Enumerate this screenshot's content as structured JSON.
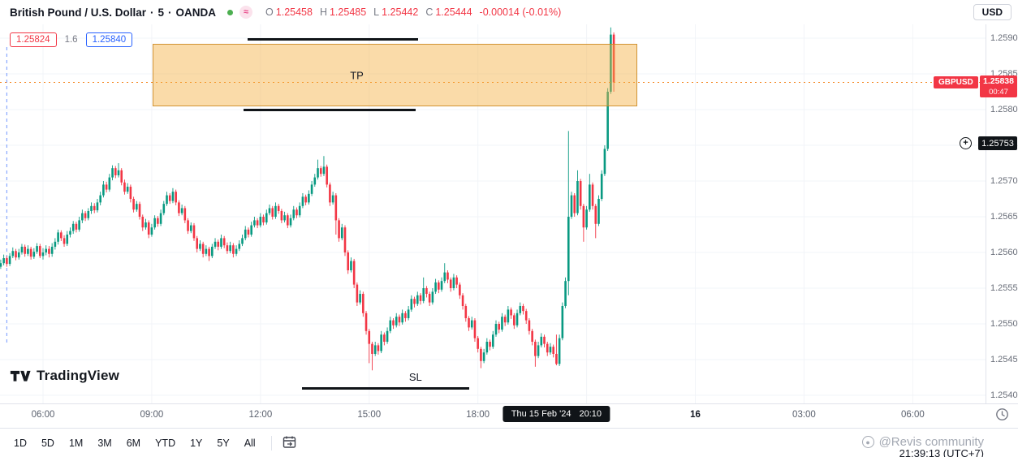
{
  "header": {
    "symbol_title": "British Pound / U.S. Dollar",
    "separator": "·",
    "interval": "5",
    "exchange": "OANDA",
    "ohlc": {
      "o_label": "O",
      "o_value": "1.25458",
      "h_label": "H",
      "h_value": "1.25485",
      "l_label": "L",
      "l_value": "1.25442",
      "c_label": "C",
      "c_value": "1.25444",
      "change": "-0.00014 (-0.01%)"
    },
    "currency_button": "USD"
  },
  "position_labels": {
    "entry": "1.25824",
    "size": "1.6",
    "target": "1.25840"
  },
  "icons": {
    "wave": "≈",
    "plus": "+"
  },
  "colors": {
    "up": "#089981",
    "down": "#f23645",
    "accent_blue": "#2962ff",
    "market_open_dot": "#4caf50",
    "tp_fill": "rgba(245,176,65,0.45)",
    "tp_border": "rgba(201,134,30,0.85)",
    "last_price_line": "#f5861d",
    "grid": "#f2f4f8"
  },
  "drawings": {
    "tp_zone": {
      "label": "TP",
      "h_start": 3.024,
      "h_end": 16.4,
      "price_top": 1.25892,
      "price_bottom": 1.258045,
      "label_h": 8.45
    },
    "line_above": {
      "h_start": 5.645,
      "h_end": 10.349,
      "price": 1.25898
    },
    "line_below": {
      "h_start": 5.533,
      "h_end": 10.282,
      "price": 1.257989
    },
    "sl_line": {
      "label": "SL",
      "h_start": 7.146,
      "h_end": 11.761,
      "price": 1.2541,
      "label_h": 10.28
    },
    "vline_h": -1.0,
    "last_price_line": {
      "price": 1.25838
    }
  },
  "price_scale": {
    "labels": [
      "1.25900",
      "1.25850",
      "1.25800",
      "1.25750",
      "1.25700",
      "1.25650",
      "1.25600",
      "1.25550",
      "1.25500",
      "1.25450",
      "1.25400"
    ],
    "symbol_badge": {
      "label": "GBPUSD",
      "price": "1.25838",
      "countdown": "00:47"
    },
    "order_badge": {
      "price": "1.25753"
    }
  },
  "time_scale": {
    "labels": [
      {
        "text": "06:00",
        "h": 0
      },
      {
        "text": "09:00",
        "h": 3
      },
      {
        "text": "12:00",
        "h": 6
      },
      {
        "text": "15:00",
        "h": 9
      },
      {
        "text": "18:00",
        "h": 12
      },
      {
        "text": "16",
        "h": 18,
        "emphasis": true
      },
      {
        "text": "03:00",
        "h": 21
      },
      {
        "text": "06:00",
        "h": 24
      }
    ],
    "crosshair_badge": {
      "date": "Thu 15 Feb '24",
      "time": "20:10",
      "h": 14.1667
    }
  },
  "toolbar": {
    "ranges": [
      "1D",
      "5D",
      "1M",
      "3M",
      "6M",
      "YTD",
      "1Y",
      "5Y",
      "All"
    ],
    "clock": "21:39:13 (UTC+7)"
  },
  "watermark": "@Revis community",
  "logo_text": "TradingView",
  "chart_data": {
    "type": "candlestick",
    "symbol": "GBPUSD",
    "description": "British Pound / U.S. Dollar, 5-minute, OANDA",
    "interval_minutes": 5,
    "price_base": 1.25,
    "pip": 0.0001,
    "first_candle_offset_h": -1.1667,
    "visible_price_range": [
      1.254,
      1.259
    ],
    "last_price": 1.25838,
    "hovered_candle": {
      "time": "20:10",
      "open": 1.25458,
      "high": 1.25485,
      "low": 1.25442,
      "close": 1.25444
    },
    "up_color": "#089981",
    "down_color": "#f23645",
    "candles_pips": [
      [
        58.0,
        59.0,
        57.7,
        58.5
      ],
      [
        58.5,
        59.7,
        58.2,
        59.2
      ],
      [
        59.2,
        59.5,
        58.0,
        58.4
      ],
      [
        58.4,
        59.9,
        58.1,
        59.5
      ],
      [
        59.5,
        60.7,
        59.2,
        60.2
      ],
      [
        60.2,
        60.5,
        58.9,
        59.3
      ],
      [
        59.3,
        60.5,
        59.0,
        60.0
      ],
      [
        60.0,
        61.2,
        59.7,
        60.8
      ],
      [
        60.8,
        61.1,
        59.4,
        59.8
      ],
      [
        59.8,
        61.0,
        59.5,
        60.5
      ],
      [
        60.5,
        60.8,
        59.0,
        59.4
      ],
      [
        59.4,
        60.6,
        59.1,
        60.1
      ],
      [
        60.1,
        61.3,
        59.8,
        60.9
      ],
      [
        60.9,
        61.2,
        59.2,
        59.5
      ],
      [
        59.5,
        60.6,
        59.0,
        60.0
      ],
      [
        60.0,
        61.0,
        59.6,
        60.5
      ],
      [
        60.5,
        60.9,
        59.3,
        59.8
      ],
      [
        59.8,
        61.3,
        59.4,
        60.8
      ],
      [
        60.8,
        62.0,
        60.4,
        61.5
      ],
      [
        61.5,
        63.2,
        61.1,
        62.8
      ],
      [
        62.8,
        63.1,
        61.6,
        62.0
      ],
      [
        62.0,
        62.4,
        60.8,
        61.2
      ],
      [
        61.2,
        63.0,
        60.9,
        62.5
      ],
      [
        62.5,
        63.5,
        62.1,
        63.0
      ],
      [
        63.0,
        64.4,
        62.6,
        64.0
      ],
      [
        64.0,
        64.3,
        62.8,
        63.2
      ],
      [
        63.2,
        65.0,
        62.9,
        64.5
      ],
      [
        64.5,
        66.0,
        64.1,
        65.5
      ],
      [
        65.5,
        65.8,
        64.4,
        64.8
      ],
      [
        64.8,
        66.2,
        64.5,
        65.8
      ],
      [
        65.8,
        67.0,
        65.4,
        66.5
      ],
      [
        66.5,
        66.9,
        65.5,
        65.9
      ],
      [
        65.9,
        67.5,
        65.6,
        67.0
      ],
      [
        67.0,
        68.5,
        66.6,
        68.0
      ],
      [
        68.0,
        70.0,
        67.7,
        69.5
      ],
      [
        69.5,
        69.9,
        68.4,
        68.8
      ],
      [
        68.8,
        71.0,
        68.5,
        70.5
      ],
      [
        70.5,
        72.2,
        70.1,
        71.8
      ],
      [
        71.8,
        72.1,
        70.4,
        70.8
      ],
      [
        70.8,
        72.5,
        70.5,
        71.5
      ],
      [
        71.5,
        71.8,
        69.4,
        69.8
      ],
      [
        69.8,
        70.2,
        68.1,
        68.5
      ],
      [
        68.5,
        69.7,
        68.2,
        69.2
      ],
      [
        69.2,
        69.5,
        67.0,
        67.5
      ],
      [
        67.5,
        67.8,
        65.6,
        66.0
      ],
      [
        66.0,
        67.2,
        65.7,
        66.8
      ],
      [
        66.8,
        67.1,
        64.6,
        65.0
      ],
      [
        65.0,
        65.3,
        63.0,
        63.5
      ],
      [
        63.5,
        64.7,
        63.2,
        64.2
      ],
      [
        64.2,
        64.5,
        62.0,
        62.5
      ],
      [
        62.5,
        64.0,
        62.2,
        63.5
      ],
      [
        63.5,
        65.2,
        63.2,
        64.8
      ],
      [
        64.8,
        65.1,
        63.6,
        64.0
      ],
      [
        64.0,
        66.0,
        63.7,
        65.5
      ],
      [
        65.5,
        67.2,
        65.2,
        66.8
      ],
      [
        66.8,
        68.5,
        66.5,
        68.0
      ],
      [
        68.0,
        68.3,
        66.8,
        67.2
      ],
      [
        67.2,
        69.0,
        66.9,
        68.5
      ],
      [
        68.5,
        68.8,
        66.6,
        67.0
      ],
      [
        67.0,
        67.3,
        65.1,
        65.5
      ],
      [
        65.5,
        66.7,
        65.2,
        66.2
      ],
      [
        66.2,
        66.5,
        64.1,
        64.5
      ],
      [
        64.5,
        64.8,
        62.6,
        63.0
      ],
      [
        63.0,
        64.2,
        62.7,
        63.8
      ],
      [
        63.8,
        64.1,
        61.6,
        62.0
      ],
      [
        62.0,
        62.3,
        60.0,
        60.5
      ],
      [
        60.5,
        61.7,
        60.2,
        61.2
      ],
      [
        61.2,
        61.5,
        59.3,
        59.8
      ],
      [
        59.8,
        61.0,
        59.5,
        60.5
      ],
      [
        60.5,
        60.8,
        58.8,
        59.5
      ],
      [
        59.5,
        61.2,
        59.2,
        60.8
      ],
      [
        60.8,
        62.0,
        60.5,
        61.5
      ],
      [
        61.5,
        61.8,
        60.3,
        60.8
      ],
      [
        60.8,
        62.5,
        60.5,
        62.0
      ],
      [
        62.0,
        62.3,
        60.6,
        61.0
      ],
      [
        61.0,
        61.4,
        59.8,
        60.2
      ],
      [
        60.2,
        61.5,
        59.9,
        61.0
      ],
      [
        61.0,
        61.3,
        59.3,
        59.8
      ],
      [
        59.8,
        61.0,
        59.5,
        60.5
      ],
      [
        60.5,
        61.7,
        60.2,
        61.2
      ],
      [
        61.2,
        62.5,
        60.9,
        62.0
      ],
      [
        62.0,
        63.7,
        61.7,
        63.2
      ],
      [
        63.2,
        63.5,
        62.1,
        62.5
      ],
      [
        62.5,
        64.3,
        62.2,
        63.8
      ],
      [
        63.8,
        65.0,
        63.5,
        64.5
      ],
      [
        64.5,
        64.8,
        63.4,
        63.8
      ],
      [
        63.8,
        65.5,
        63.5,
        65.0
      ],
      [
        65.0,
        65.3,
        63.8,
        64.2
      ],
      [
        64.2,
        66.0,
        63.9,
        65.5
      ],
      [
        65.5,
        66.7,
        65.2,
        66.2
      ],
      [
        66.2,
        66.5,
        64.6,
        65.0
      ],
      [
        65.0,
        67.0,
        64.7,
        66.5
      ],
      [
        66.5,
        66.8,
        65.4,
        65.8
      ],
      [
        65.8,
        66.1,
        64.1,
        64.5
      ],
      [
        64.5,
        65.7,
        64.2,
        65.2
      ],
      [
        65.2,
        65.5,
        63.4,
        63.8
      ],
      [
        63.8,
        65.3,
        63.5,
        64.8
      ],
      [
        64.8,
        66.5,
        64.5,
        66.0
      ],
      [
        66.0,
        66.3,
        64.8,
        65.2
      ],
      [
        65.2,
        67.0,
        64.9,
        66.5
      ],
      [
        66.5,
        68.3,
        66.2,
        67.8
      ],
      [
        67.8,
        68.1,
        66.6,
        67.0
      ],
      [
        67.0,
        68.7,
        66.7,
        68.2
      ],
      [
        68.2,
        70.0,
        67.9,
        69.5
      ],
      [
        69.5,
        71.0,
        69.2,
        70.5
      ],
      [
        70.5,
        73.0,
        70.2,
        71.8
      ],
      [
        71.8,
        72.1,
        70.6,
        71.0
      ],
      [
        71.0,
        73.5,
        70.7,
        72.0
      ],
      [
        72.0,
        72.3,
        69.1,
        69.5
      ],
      [
        69.5,
        69.8,
        66.5,
        67.0
      ],
      [
        67.0,
        68.5,
        66.7,
        68.0
      ],
      [
        68.0,
        68.3,
        62.5,
        64.5
      ],
      [
        64.5,
        64.8,
        61.5,
        62.0
      ],
      [
        62.0,
        64.0,
        61.7,
        63.5
      ],
      [
        63.5,
        63.8,
        59.5,
        60.0
      ],
      [
        60.0,
        60.3,
        57.0,
        57.5
      ],
      [
        57.5,
        59.3,
        57.2,
        58.8
      ],
      [
        58.8,
        59.1,
        55.0,
        55.5
      ],
      [
        55.5,
        55.8,
        52.5,
        53.0
      ],
      [
        53.0,
        54.7,
        52.7,
        54.2
      ],
      [
        54.2,
        54.5,
        51.0,
        51.5
      ],
      [
        51.5,
        51.8,
        48.5,
        49.0
      ],
      [
        49.0,
        49.3,
        44.5,
        47.2
      ],
      [
        47.2,
        47.5,
        43.5,
        45.8
      ],
      [
        45.8,
        47.5,
        45.5,
        47.0
      ],
      [
        47.0,
        47.3,
        45.7,
        46.2
      ],
      [
        46.2,
        49.0,
        45.9,
        48.5
      ],
      [
        48.5,
        48.8,
        47.0,
        47.5
      ],
      [
        47.5,
        49.5,
        47.2,
        49.0
      ],
      [
        49.0,
        51.0,
        48.7,
        50.5
      ],
      [
        50.5,
        50.8,
        49.3,
        49.8
      ],
      [
        49.8,
        51.5,
        49.5,
        51.0
      ],
      [
        51.0,
        51.3,
        49.7,
        50.2
      ],
      [
        50.2,
        52.0,
        49.9,
        51.5
      ],
      [
        51.5,
        51.8,
        50.3,
        50.8
      ],
      [
        50.8,
        52.5,
        50.5,
        52.0
      ],
      [
        52.0,
        54.0,
        51.7,
        53.5
      ],
      [
        53.5,
        53.8,
        52.3,
        52.8
      ],
      [
        52.8,
        54.5,
        52.5,
        54.0
      ],
      [
        54.0,
        54.3,
        52.7,
        53.2
      ],
      [
        53.2,
        56.5,
        52.9,
        55.0
      ],
      [
        55.0,
        55.3,
        53.7,
        54.2
      ],
      [
        54.2,
        54.5,
        52.5,
        53.0
      ],
      [
        53.0,
        55.0,
        52.7,
        54.5
      ],
      [
        54.5,
        56.3,
        54.2,
        55.8
      ],
      [
        55.8,
        56.1,
        54.3,
        54.8
      ],
      [
        54.8,
        56.5,
        54.5,
        56.0
      ],
      [
        56.0,
        58.5,
        55.7,
        57.2
      ],
      [
        57.2,
        57.5,
        55.7,
        56.2
      ],
      [
        56.2,
        56.5,
        54.5,
        55.0
      ],
      [
        55.0,
        57.0,
        54.7,
        56.5
      ],
      [
        56.5,
        56.8,
        55.0,
        55.5
      ],
      [
        55.5,
        55.8,
        53.5,
        54.0
      ],
      [
        54.0,
        54.3,
        52.0,
        52.5
      ],
      [
        52.5,
        52.8,
        50.3,
        50.8
      ],
      [
        50.8,
        51.1,
        49.0,
        49.5
      ],
      [
        49.5,
        51.0,
        49.2,
        50.5
      ],
      [
        50.5,
        50.8,
        47.5,
        48.0
      ],
      [
        48.0,
        48.3,
        46.0,
        46.5
      ],
      [
        46.5,
        46.8,
        43.8,
        44.8
      ],
      [
        44.8,
        46.5,
        44.5,
        46.0
      ],
      [
        46.0,
        48.0,
        45.7,
        47.5
      ],
      [
        47.5,
        47.8,
        46.3,
        46.8
      ],
      [
        46.8,
        49.0,
        46.5,
        48.5
      ],
      [
        48.5,
        50.5,
        48.2,
        50.0
      ],
      [
        50.0,
        50.3,
        48.7,
        49.2
      ],
      [
        49.2,
        51.5,
        48.9,
        51.0
      ],
      [
        51.0,
        51.3,
        49.7,
        50.2
      ],
      [
        50.2,
        52.5,
        49.9,
        52.0
      ],
      [
        52.0,
        52.3,
        50.7,
        51.2
      ],
      [
        51.2,
        51.5,
        49.3,
        49.8
      ],
      [
        49.8,
        52.0,
        49.5,
        51.5
      ],
      [
        51.5,
        53.0,
        51.2,
        52.5
      ],
      [
        52.5,
        52.8,
        51.3,
        51.8
      ],
      [
        51.8,
        52.1,
        50.0,
        50.5
      ],
      [
        50.5,
        50.8,
        48.5,
        49.0
      ],
      [
        49.0,
        49.3,
        47.0,
        47.5
      ],
      [
        47.5,
        47.8,
        44.0,
        45.5
      ],
      [
        45.5,
        47.5,
        45.2,
        47.0
      ],
      [
        47.0,
        48.7,
        46.7,
        48.2
      ],
      [
        48.2,
        48.5,
        46.7,
        47.2
      ],
      [
        47.2,
        47.5,
        45.5,
        46.0
      ],
      [
        46.0,
        47.3,
        45.7,
        46.8
      ],
      [
        46.8,
        47.1,
        45.3,
        45.8
      ],
      [
        45.8,
        48.5,
        44.2,
        44.4
      ],
      [
        44.4,
        48.5,
        44.1,
        48.0
      ],
      [
        48.0,
        53.0,
        47.7,
        52.5
      ],
      [
        52.5,
        56.5,
        52.2,
        56.0
      ],
      [
        56.0,
        77.0,
        54.0,
        65.0
      ],
      [
        65.0,
        68.5,
        64.7,
        68.0
      ],
      [
        68.0,
        68.3,
        65.0,
        65.5
      ],
      [
        65.5,
        71.5,
        65.2,
        70.0
      ],
      [
        70.0,
        70.3,
        66.0,
        66.5
      ],
      [
        66.5,
        66.8,
        61.5,
        63.5
      ],
      [
        63.5,
        66.5,
        63.2,
        66.0
      ],
      [
        66.0,
        71.0,
        65.7,
        69.5
      ],
      [
        69.5,
        69.8,
        66.0,
        66.5
      ],
      [
        66.5,
        66.8,
        62.0,
        64.0
      ],
      [
        64.0,
        68.0,
        63.7,
        67.5
      ],
      [
        67.5,
        71.5,
        67.2,
        71.0
      ],
      [
        71.0,
        75.0,
        70.7,
        74.5
      ],
      [
        74.5,
        83.0,
        74.2,
        82.5
      ],
      [
        82.5,
        91.5,
        82.2,
        90.5
      ],
      [
        90.5,
        90.8,
        82.5,
        83.8
      ]
    ]
  }
}
